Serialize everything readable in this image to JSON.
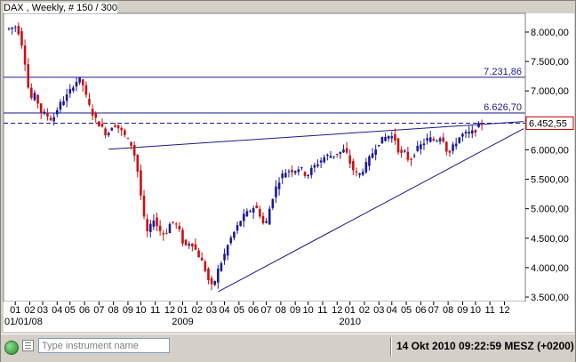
{
  "header": {
    "title": "DAX , Weekly, # 150 / 300"
  },
  "chart_data": {
    "type": "candlestick",
    "instrument": "DAX",
    "interval": "Weekly",
    "y_axis": {
      "position": "right",
      "range": [
        3400,
        8300
      ],
      "ticks": [
        {
          "value": 3500,
          "label": "3.500,00"
        },
        {
          "value": 4000,
          "label": "4.000,00"
        },
        {
          "value": 4500,
          "label": "4.500,00"
        },
        {
          "value": 5000,
          "label": "5.000,00"
        },
        {
          "value": 5500,
          "label": "5.500,00"
        },
        {
          "value": 6000,
          "label": "6.000,00"
        },
        {
          "value": 6500,
          "label": "6.500,00"
        },
        {
          "value": 7000,
          "label": "7.000,00"
        },
        {
          "value": 7500,
          "label": "7.500,00"
        },
        {
          "value": 8000,
          "label": "8.000,00"
        }
      ]
    },
    "x_axis": {
      "month_ticks": [
        {
          "label": "01",
          "week": 2
        },
        {
          "label": "02",
          "week": 6.5
        },
        {
          "label": "03",
          "week": 10.5
        },
        {
          "label": "04",
          "week": 15
        },
        {
          "label": "05",
          "week": 19
        },
        {
          "label": "06",
          "week": 23.5
        },
        {
          "label": "07",
          "week": 28
        },
        {
          "label": "08",
          "week": 32.5
        },
        {
          "label": "09",
          "week": 37
        },
        {
          "label": "10",
          "week": 41
        },
        {
          "label": "11",
          "week": 45.5
        },
        {
          "label": "12",
          "week": 50
        },
        {
          "label": "01",
          "week": 54
        },
        {
          "label": "02",
          "week": 58.5
        },
        {
          "label": "03",
          "week": 63
        },
        {
          "label": "04",
          "week": 67
        },
        {
          "label": "05",
          "week": 71.5
        },
        {
          "label": "06",
          "week": 76
        },
        {
          "label": "07",
          "week": 80
        },
        {
          "label": "08",
          "week": 84.5
        },
        {
          "label": "09",
          "week": 89
        },
        {
          "label": "10",
          "week": 93
        },
        {
          "label": "11",
          "week": 97.5
        },
        {
          "label": "12",
          "week": 102
        },
        {
          "label": "01",
          "week": 106
        },
        {
          "label": "02",
          "week": 110.5
        },
        {
          "label": "03",
          "week": 115
        },
        {
          "label": "04",
          "week": 119
        },
        {
          "label": "05",
          "week": 123.5
        },
        {
          "label": "06",
          "week": 128
        },
        {
          "label": "07",
          "week": 132
        },
        {
          "label": "08",
          "week": 136.5
        },
        {
          "label": "09",
          "week": 141
        },
        {
          "label": "10",
          "week": 145
        },
        {
          "label": "11",
          "week": 149.5
        },
        {
          "label": "12",
          "week": 154
        }
      ],
      "year_labels": [
        {
          "label": "01/01/08",
          "week": 0
        },
        {
          "label": "2009",
          "week": 54
        },
        {
          "label": "2010",
          "week": 106
        }
      ]
    },
    "horizontal_lines": [
      {
        "value": 7231.86,
        "label": "7.231,86",
        "style": "solid"
      },
      {
        "value": 6626.7,
        "label": "6.626,70",
        "style": "solid"
      },
      {
        "value": 6452.55,
        "label": "6.452,55",
        "style": "dashed",
        "current": true
      }
    ],
    "trend_lines": [
      {
        "from": {
          "week": 31,
          "value": 6010
        },
        "to": {
          "week": 160,
          "value": 6480
        }
      },
      {
        "from": {
          "week": 65,
          "value": 3590
        },
        "to": {
          "week": 160,
          "value": 6360
        }
      }
    ],
    "price_path": [
      [
        0,
        8050
      ],
      [
        3,
        8100
      ],
      [
        5,
        7700
      ],
      [
        7,
        6850
      ],
      [
        9,
        6950
      ],
      [
        10,
        6650
      ],
      [
        12,
        6600
      ],
      [
        14,
        6500
      ],
      [
        16,
        6750
      ],
      [
        19,
        6950
      ],
      [
        21,
        7150
      ],
      [
        23,
        7200
      ],
      [
        25,
        6800
      ],
      [
        27,
        6550
      ],
      [
        29,
        6400
      ],
      [
        31,
        6250
      ],
      [
        33,
        6450
      ],
      [
        35,
        6350
      ],
      [
        37,
        6200
      ],
      [
        39,
        6050
      ],
      [
        41,
        5500
      ],
      [
        42,
        4950
      ],
      [
        43,
        4700
      ],
      [
        44,
        4500
      ],
      [
        45,
        4900
      ],
      [
        47,
        4650
      ],
      [
        49,
        4550
      ],
      [
        51,
        4800
      ],
      [
        53,
        4700
      ],
      [
        55,
        4350
      ],
      [
        57,
        4450
      ],
      [
        59,
        4250
      ],
      [
        61,
        4050
      ],
      [
        63,
        3700
      ],
      [
        64,
        3660
      ],
      [
        65,
        3900
      ],
      [
        67,
        4150
      ],
      [
        69,
        4450
      ],
      [
        71,
        4650
      ],
      [
        73,
        4850
      ],
      [
        75,
        4950
      ],
      [
        77,
        5050
      ],
      [
        79,
        4850
      ],
      [
        80,
        4650
      ],
      [
        81,
        4900
      ],
      [
        83,
        5300
      ],
      [
        85,
        5550
      ],
      [
        87,
        5650
      ],
      [
        89,
        5650
      ],
      [
        91,
        5700
      ],
      [
        93,
        5550
      ],
      [
        95,
        5700
      ],
      [
        97,
        5800
      ],
      [
        99,
        5900
      ],
      [
        101,
        5900
      ],
      [
        103,
        5950
      ],
      [
        105,
        6000
      ],
      [
        107,
        5700
      ],
      [
        109,
        5550
      ],
      [
        111,
        5700
      ],
      [
        113,
        5900
      ],
      [
        115,
        6100
      ],
      [
        117,
        6200
      ],
      [
        119,
        6250
      ],
      [
        121,
        6150
      ],
      [
        122,
        5850
      ],
      [
        123,
        6000
      ],
      [
        125,
        5800
      ],
      [
        127,
        6000
      ],
      [
        129,
        6100
      ],
      [
        131,
        6200
      ],
      [
        133,
        6150
      ],
      [
        135,
        6250
      ],
      [
        136,
        6100
      ],
      [
        137,
        5900
      ],
      [
        139,
        6100
      ],
      [
        141,
        6250
      ],
      [
        143,
        6280
      ],
      [
        145,
        6300
      ],
      [
        147,
        6452
      ]
    ]
  },
  "status": {
    "instrument_placeholder": "Type instrument name",
    "datetime": "14 Okt 2010 09:22:59  MESZ (+0200)"
  }
}
